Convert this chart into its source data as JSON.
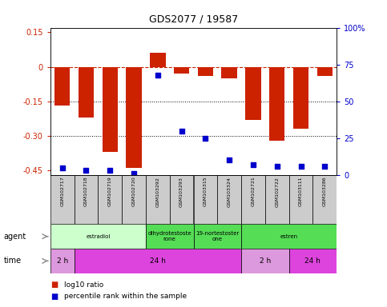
{
  "title": "GDS2077 / 19587",
  "samples": [
    "GSM102717",
    "GSM102718",
    "GSM102719",
    "GSM102720",
    "GSM103292",
    "GSM103293",
    "GSM103315",
    "GSM103324",
    "GSM102721",
    "GSM102722",
    "GSM103111",
    "GSM103286"
  ],
  "log10_ratio": [
    -0.17,
    -0.22,
    -0.37,
    -0.44,
    0.06,
    -0.03,
    -0.04,
    -0.05,
    -0.23,
    -0.32,
    -0.27,
    -0.04
  ],
  "percentile_rank": [
    5,
    3,
    3,
    1,
    68,
    30,
    25,
    10,
    7,
    6,
    6,
    6
  ],
  "ylim": [
    -0.47,
    0.17
  ],
  "yticks": [
    0.15,
    0.0,
    -0.15,
    -0.3,
    -0.45
  ],
  "ytick_labels": [
    "0.15",
    "0",
    "-0.15",
    "-0.30",
    "-0.45"
  ],
  "right_yticks_pct": [
    100,
    75,
    50,
    25,
    0
  ],
  "right_ytick_labels": [
    "100%",
    "75",
    "50",
    "25",
    "0"
  ],
  "hline_dotted": [
    -0.15,
    -0.3
  ],
  "agent_groups": [
    {
      "label": "estradiol",
      "start": 0,
      "end": 4,
      "color": "#ccffcc"
    },
    {
      "label": "dihydrotestoste\nrone",
      "start": 4,
      "end": 6,
      "color": "#55dd55"
    },
    {
      "label": "19-nortestoster\none",
      "start": 6,
      "end": 8,
      "color": "#55dd55"
    },
    {
      "label": "estren",
      "start": 8,
      "end": 12,
      "color": "#55dd55"
    }
  ],
  "time_groups": [
    {
      "label": "2 h",
      "start": 0,
      "end": 1,
      "color": "#dd99dd"
    },
    {
      "label": "24 h",
      "start": 1,
      "end": 8,
      "color": "#dd44dd"
    },
    {
      "label": "2 h",
      "start": 8,
      "end": 10,
      "color": "#dd99dd"
    },
    {
      "label": "24 h",
      "start": 10,
      "end": 12,
      "color": "#dd44dd"
    }
  ],
  "bar_color": "#cc2200",
  "dot_color": "#0000cc",
  "bg_color": "#ffffff",
  "sample_bg": "#cccccc",
  "legend_red_label": "log10 ratio",
  "legend_blue_label": "percentile rank within the sample"
}
